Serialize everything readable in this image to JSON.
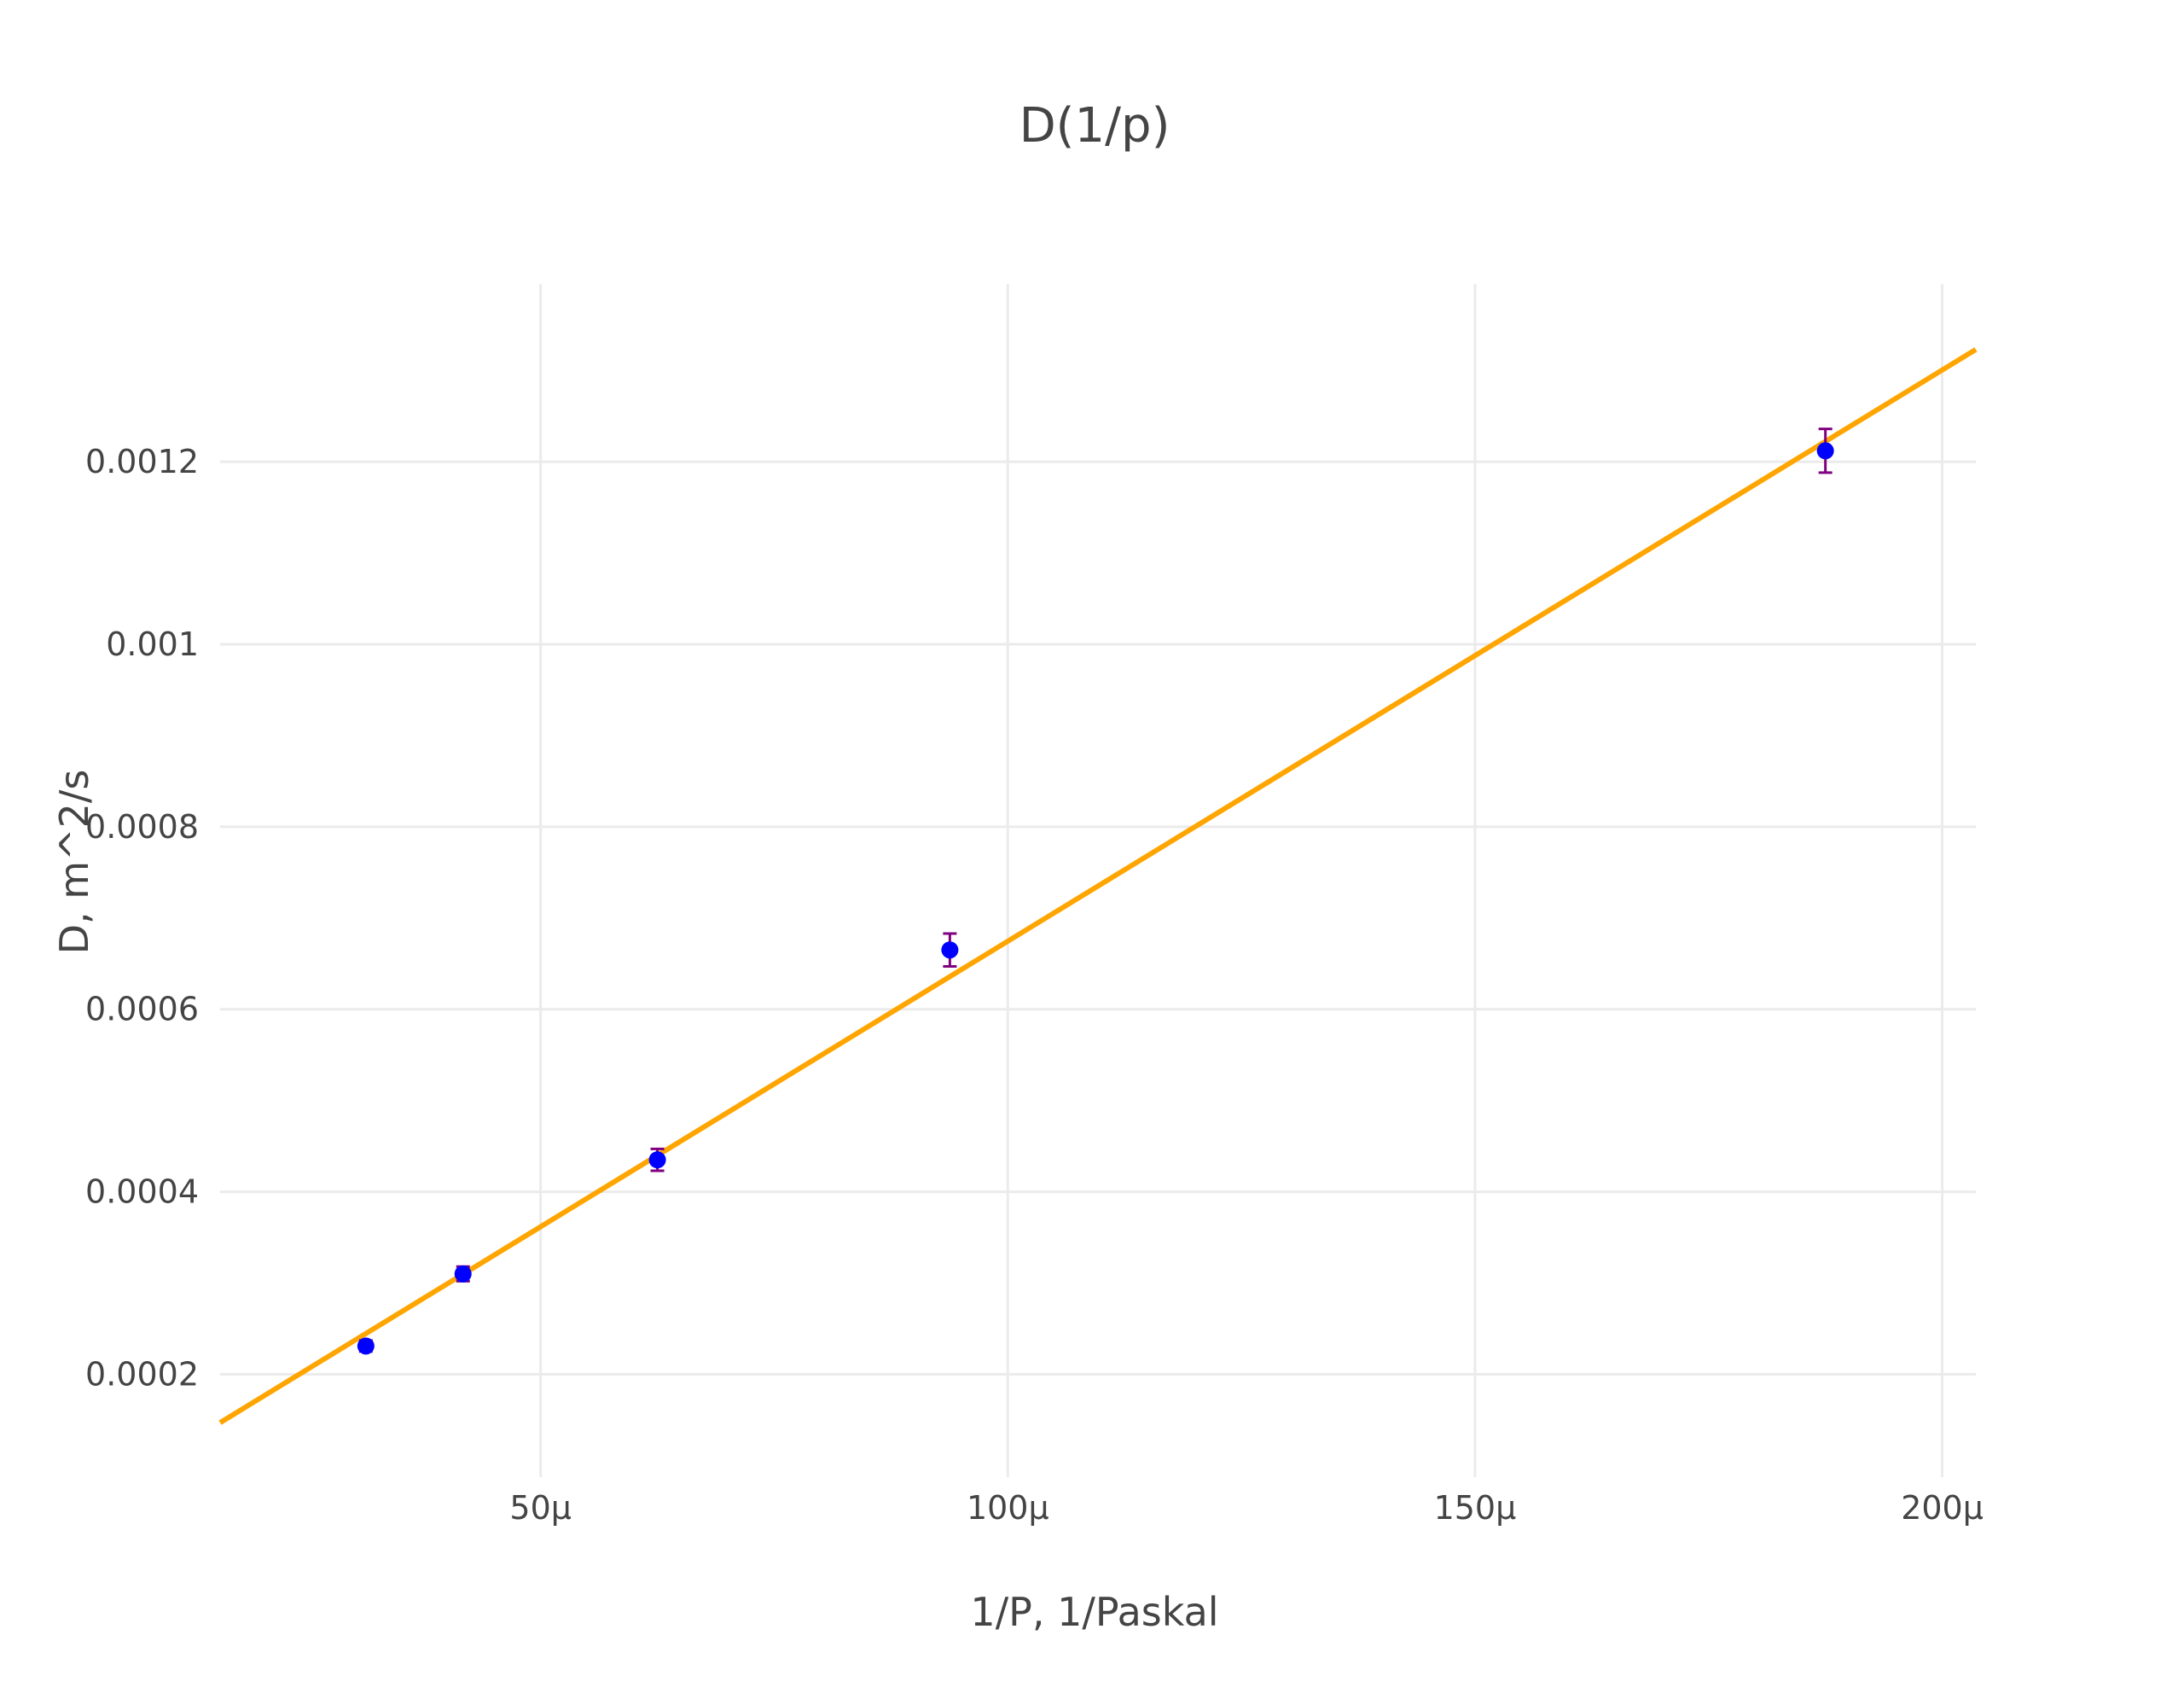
{
  "chart_data": {
    "type": "scatter",
    "title": "D(1/p)",
    "xlabel": "1/P, 1/Paskal",
    "ylabel": "D, m^2/s",
    "xlim": [
      1.57e-05,
      0.0002036
    ],
    "ylim": [
      8.73e-05,
      0.0013946
    ],
    "x_ticks": [
      {
        "value": 5e-05,
        "label": "50μ"
      },
      {
        "value": 0.0001,
        "label": "100μ"
      },
      {
        "value": 0.00015,
        "label": "150μ"
      },
      {
        "value": 0.0002,
        "label": "200μ"
      }
    ],
    "y_ticks": [
      {
        "value": 0.0002,
        "label": "0.0002"
      },
      {
        "value": 0.0004,
        "label": "0.0004"
      },
      {
        "value": 0.0006,
        "label": "0.0006"
      },
      {
        "value": 0.0008,
        "label": "0.0008"
      },
      {
        "value": 0.001,
        "label": "0.001"
      },
      {
        "value": 0.0012,
        "label": "0.0012"
      }
    ],
    "grid": true,
    "series": [
      {
        "mode": "markers",
        "color": "#0000ff",
        "error_color": "#800080",
        "x": [
          3.13e-05,
          4.17e-05,
          6.25e-05,
          9.38e-05,
          0.0001875
        ],
        "y": [
          0.000231,
          0.00031,
          0.000435,
          0.000665,
          0.001212
        ],
        "error_y": [
          6e-06,
          8e-06,
          1.2e-05,
          1.8e-05,
          2.4e-05
        ]
      },
      {
        "mode": "line",
        "color": "#ffa500",
        "x": [
          1.57e-05,
          0.0002036
        ],
        "y": [
          0.000147,
          0.001323
        ]
      }
    ]
  }
}
